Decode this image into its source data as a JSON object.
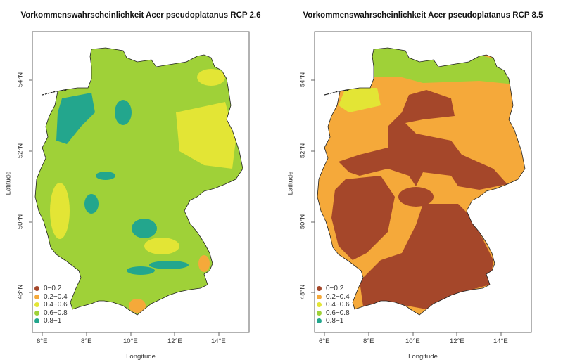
{
  "maps": [
    {
      "title": "Vorkommenswahrscheinlichkeit Acer pseudoplatanus RCP 2.6",
      "scenario": "RCP 2.6",
      "dominant_class": "0.6-0.8"
    },
    {
      "title": "Vorkommenswahrscheinlichkeit Acer pseudoplatanus RCP 8.5",
      "scenario": "RCP 8.5",
      "dominant_class": "0-0.2"
    }
  ],
  "axes": {
    "xlabel": "Longitude",
    "ylabel": "Latitude",
    "xticks": [
      "6°E",
      "8°E",
      "10°E",
      "12°E",
      "14°E"
    ],
    "yticks": [
      "48°N",
      "50°N",
      "52°N",
      "54°N"
    ]
  },
  "legend": [
    {
      "label": "0−0.2",
      "color": "#a5472a"
    },
    {
      "label": "0.2−0.4",
      "color": "#f5a93a"
    },
    {
      "label": "0.4−0.6",
      "color": "#e3e535"
    },
    {
      "label": "0.6−0.8",
      "color": "#9fd138"
    },
    {
      "label": "0.8−1",
      "color": "#23a68d"
    }
  ]
}
